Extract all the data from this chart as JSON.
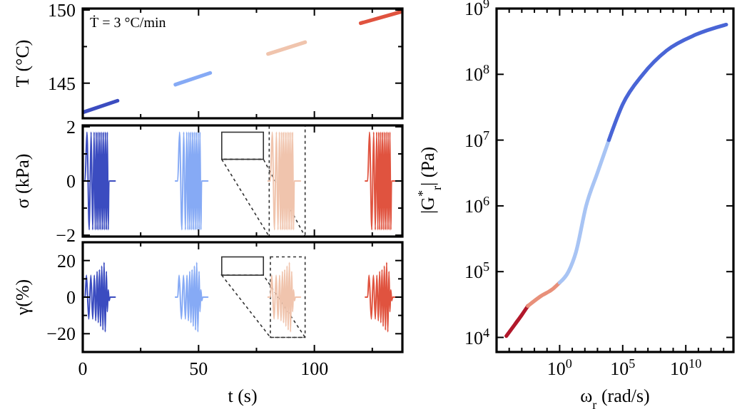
{
  "chart_data": [
    {
      "type": "line",
      "ylabel": "T (°C)",
      "xlim": [
        0,
        138
      ],
      "xticks": [
        0,
        {
          "value": 25,
          "label": null
        },
        50,
        {
          "value": 75,
          "label": null
        },
        100,
        {
          "value": 125,
          "label": null
        }
      ],
      "ylim": [
        142.6,
        150.1
      ],
      "yticks": [
        145,
        {
          "value": 147.5,
          "label": null
        },
        150
      ],
      "tick_labels": "y",
      "annotations": [
        "Ṫ = 3 °C/min"
      ],
      "series": [
        {
          "color": "#3b4cc0",
          "x": [
            0,
            15
          ],
          "values": [
            143.0,
            143.8
          ]
        },
        {
          "color": "#86aaf5",
          "x": [
            40,
            55
          ],
          "values": [
            144.9,
            145.7
          ]
        },
        {
          "color": "#f0c4ad",
          "x": [
            80,
            96
          ],
          "values": [
            147.0,
            147.8
          ]
        },
        {
          "color": "#e0533f",
          "x": [
            120,
            138
          ],
          "values": [
            149.1,
            149.9
          ]
        }
      ]
    },
    {
      "type": "line",
      "ylabel": "σ (kPa)",
      "xlim": [
        0,
        138
      ],
      "xticks": [
        0,
        {
          "value": 25,
          "label": null
        },
        50,
        {
          "value": 75,
          "label": null
        },
        100,
        {
          "value": 125,
          "label": null
        }
      ],
      "ylim": [
        -2.05,
        2.05
      ],
      "yticks": [
        {
          "value": -2,
          "label": "−2"
        },
        {
          "value": -1,
          "label": null
        },
        0,
        {
          "value": 1,
          "label": null
        },
        2
      ],
      "tick_labels": "y",
      "series": [
        {
          "color": "#3b4cc0",
          "x": [
            0,
            1,
            1.8,
            2.8,
            3.6,
            4.3,
            4.9,
            5.4,
            5.8,
            6.2,
            6.6,
            7,
            7.4,
            7.8,
            8.2,
            8.6,
            9,
            9.4,
            9.8,
            10.2,
            10.6,
            11,
            11.3,
            14
          ],
          "values": [
            0,
            0,
            1.8,
            -1.8,
            1.8,
            -1.8,
            1.8,
            -1.8,
            1.8,
            -1.8,
            1.8,
            -1.8,
            1.8,
            -1.8,
            1.8,
            -1.8,
            1.8,
            -1.8,
            1.8,
            -1.8,
            1.8,
            -1.8,
            0,
            0
          ]
        },
        {
          "color": "#86aaf5",
          "x": [
            40,
            41,
            41.8,
            42.8,
            43.6,
            44.3,
            44.9,
            45.4,
            45.8,
            46.2,
            46.6,
            47,
            47.4,
            47.8,
            48.2,
            48.6,
            49,
            49.4,
            49.8,
            50.2,
            50.6,
            51,
            51.3,
            54
          ],
          "values": [
            0,
            0,
            1.8,
            -1.8,
            1.8,
            -1.8,
            1.8,
            -1.8,
            1.8,
            -1.8,
            1.8,
            -1.8,
            1.8,
            -1.8,
            1.8,
            -1.8,
            1.8,
            -1.8,
            1.8,
            -1.8,
            1.8,
            -1.8,
            0,
            0
          ]
        },
        {
          "color": "#f0c4ad",
          "x": [
            80,
            81,
            81.8,
            82.8,
            83.6,
            84.3,
            84.9,
            85.4,
            85.8,
            86.2,
            86.6,
            87,
            87.4,
            87.8,
            88.2,
            88.6,
            89,
            89.4,
            89.8,
            90.2,
            90.6,
            91,
            91.3,
            94
          ],
          "values": [
            0,
            0,
            1.8,
            -1.8,
            1.8,
            -1.8,
            1.8,
            -1.8,
            1.8,
            -1.8,
            1.8,
            -1.8,
            1.8,
            -1.8,
            1.8,
            -1.8,
            1.8,
            -1.8,
            1.8,
            -1.8,
            1.8,
            -1.8,
            0,
            0
          ]
        },
        {
          "color": "#e0533f",
          "x": [
            122,
            123,
            123.8,
            124.8,
            125.6,
            126.3,
            126.9,
            127.4,
            127.8,
            128.2,
            128.6,
            129,
            129.4,
            129.8,
            130.2,
            130.6,
            131,
            131.4,
            131.8,
            132.2,
            132.6,
            133,
            133.3,
            136
          ],
          "values": [
            0,
            0,
            1.8,
            -1.8,
            1.8,
            -1.8,
            1.8,
            -1.8,
            1.8,
            -1.8,
            1.8,
            -1.8,
            1.8,
            -1.8,
            1.8,
            -1.8,
            1.8,
            -1.8,
            1.8,
            -1.8,
            1.8,
            -1.8,
            0,
            0
          ]
        }
      ]
    },
    {
      "type": "line",
      "xlabel": "t (s)",
      "ylabel": "γ(%)",
      "xlim": [
        0,
        138
      ],
      "xticks": [
        0,
        {
          "value": 25,
          "label": null
        },
        50,
        {
          "value": 75,
          "label": null
        },
        100,
        {
          "value": 125,
          "label": null
        }
      ],
      "ylim": [
        -30,
        30
      ],
      "yticks": [
        {
          "value": -20,
          "label": "−20"
        },
        {
          "value": -10,
          "label": null
        },
        0,
        {
          "value": 10,
          "label": null
        },
        20
      ],
      "series": [
        {
          "color": "#3b4cc0",
          "x": [
            0,
            1,
            1.6,
            2.6,
            3.5,
            4.3,
            5,
            5.6,
            6.2,
            6.7,
            7.2,
            7.7,
            8.2,
            8.7,
            9.2,
            9.7,
            10.2,
            10.6,
            11,
            11.4,
            11.8,
            14
          ],
          "values": [
            0,
            0,
            12,
            -12,
            12,
            -12,
            12,
            -13,
            14,
            -14,
            15,
            -16,
            17,
            -18,
            19,
            -19,
            14,
            -8,
            4,
            -2,
            0,
            0
          ]
        },
        {
          "color": "#86aaf5",
          "x": [
            40,
            41,
            41.6,
            42.6,
            43.5,
            44.3,
            45,
            45.6,
            46.2,
            46.7,
            47.2,
            47.7,
            48.2,
            48.7,
            49.2,
            49.7,
            50.2,
            50.6,
            51,
            51.4,
            51.8,
            54
          ],
          "values": [
            0,
            0,
            12,
            -12,
            12,
            -12,
            12,
            -13,
            14,
            -14,
            15,
            -16,
            17,
            -18,
            19,
            -19,
            14,
            -8,
            4,
            -2,
            0,
            0
          ]
        },
        {
          "color": "#f0c4ad",
          "x": [
            80,
            81,
            81.6,
            82.6,
            83.5,
            84.3,
            85,
            85.6,
            86.2,
            86.7,
            87.2,
            87.7,
            88.2,
            88.7,
            89.2,
            89.7,
            90.2,
            90.6,
            91,
            91.4,
            91.8,
            94
          ],
          "values": [
            0,
            0,
            12,
            -12,
            12,
            -12,
            12,
            -13,
            14,
            -14,
            15,
            -16,
            17,
            -18,
            19,
            -19,
            14,
            -8,
            4,
            -2,
            0,
            0
          ]
        },
        {
          "color": "#e0533f",
          "x": [
            122,
            123,
            123.6,
            124.6,
            125.5,
            126.3,
            127,
            127.6,
            128.2,
            128.7,
            129.2,
            129.7,
            130.2,
            130.7,
            131.2,
            131.7,
            132.2,
            132.6,
            133,
            133.4,
            133.8,
            136
          ],
          "values": [
            0,
            0,
            12,
            -12,
            12,
            -12,
            12,
            -13,
            14,
            -14,
            15,
            -16,
            17,
            -18,
            19,
            -19,
            14,
            -8,
            4,
            -2,
            0,
            0
          ]
        }
      ]
    },
    {
      "type": "line",
      "xlabel": "ω$_{r}$ (rad/s)",
      "ylabel": "|G$^{*}$$_{r}$| (Pa)",
      "log": "xy",
      "xlim": [
        1e-05,
        60000000000000.0
      ],
      "ylim": [
        6000.0,
        1000000000.0
      ],
      "xticks": [
        {
          "value": 0.0001,
          "label": null
        },
        {
          "value": 0.001,
          "label": null
        },
        {
          "value": 0.01,
          "label": null
        },
        {
          "value": 0.1,
          "label": null
        },
        {
          "value": 1,
          "label": "10$^{0}$"
        },
        {
          "value": 10.0,
          "label": null
        },
        {
          "value": 100.0,
          "label": null
        },
        {
          "value": 1000.0,
          "label": null
        },
        {
          "value": 10000.0,
          "label": null
        },
        {
          "value": 100000.0,
          "label": "10$^{5}$"
        },
        {
          "value": 1000000.0,
          "label": null
        },
        {
          "value": 10000000.0,
          "label": null
        },
        {
          "value": 100000000.0,
          "label": null
        },
        {
          "value": 1000000000.0,
          "label": null
        },
        {
          "value": 10000000000.0,
          "label": "10$^{10}$"
        },
        {
          "value": 100000000000.0,
          "label": null
        },
        {
          "value": 1000000000000.0,
          "label": null
        },
        {
          "value": 10000000000000.0,
          "label": null
        }
      ],
      "yticks": [
        {
          "value": 10000.0,
          "label": "10$^{4}$"
        },
        {
          "value": 100000.0,
          "label": "10$^{5}$"
        },
        {
          "value": 1000000.0,
          "label": "10$^{6}$"
        },
        {
          "value": 10000000.0,
          "label": "10$^{7}$"
        },
        {
          "value": 100000000.0,
          "label": "10$^{8}$"
        },
        {
          "value": 1000000000.0,
          "label": "10$^{9}$"
        }
      ],
      "series": [
        {
          "color": "#b2182b",
          "x": [
            6e-05,
            0.0003,
            0.001,
            0.003
          ],
          "values": [
            10500.0,
            16000.0,
            22000.0,
            30000.0
          ]
        },
        {
          "color": "#e8907a",
          "x": [
            0.003,
            0.03,
            0.3,
            1
          ],
          "values": [
            30000.0,
            42000.0,
            55000.0,
            68000.0
          ]
        },
        {
          "color": "#a8c4f4",
          "x": [
            1,
            5,
            20,
            126,
            1000.0,
            8000.0
          ],
          "values": [
            68000.0,
            100000.0,
            200000.0,
            1000000.0,
            3200000.0,
            10000000.0
          ]
        },
        {
          "color": "#4965d6",
          "x": [
            8000.0,
            100000.0,
            4000000.0,
            300000000.0,
            60000000000.0,
            16000000000000.0
          ],
          "values": [
            10000000.0,
            35000000.0,
            100000000.0,
            230000000.0,
            400000000.0,
            570000000.0
          ]
        }
      ]
    }
  ]
}
